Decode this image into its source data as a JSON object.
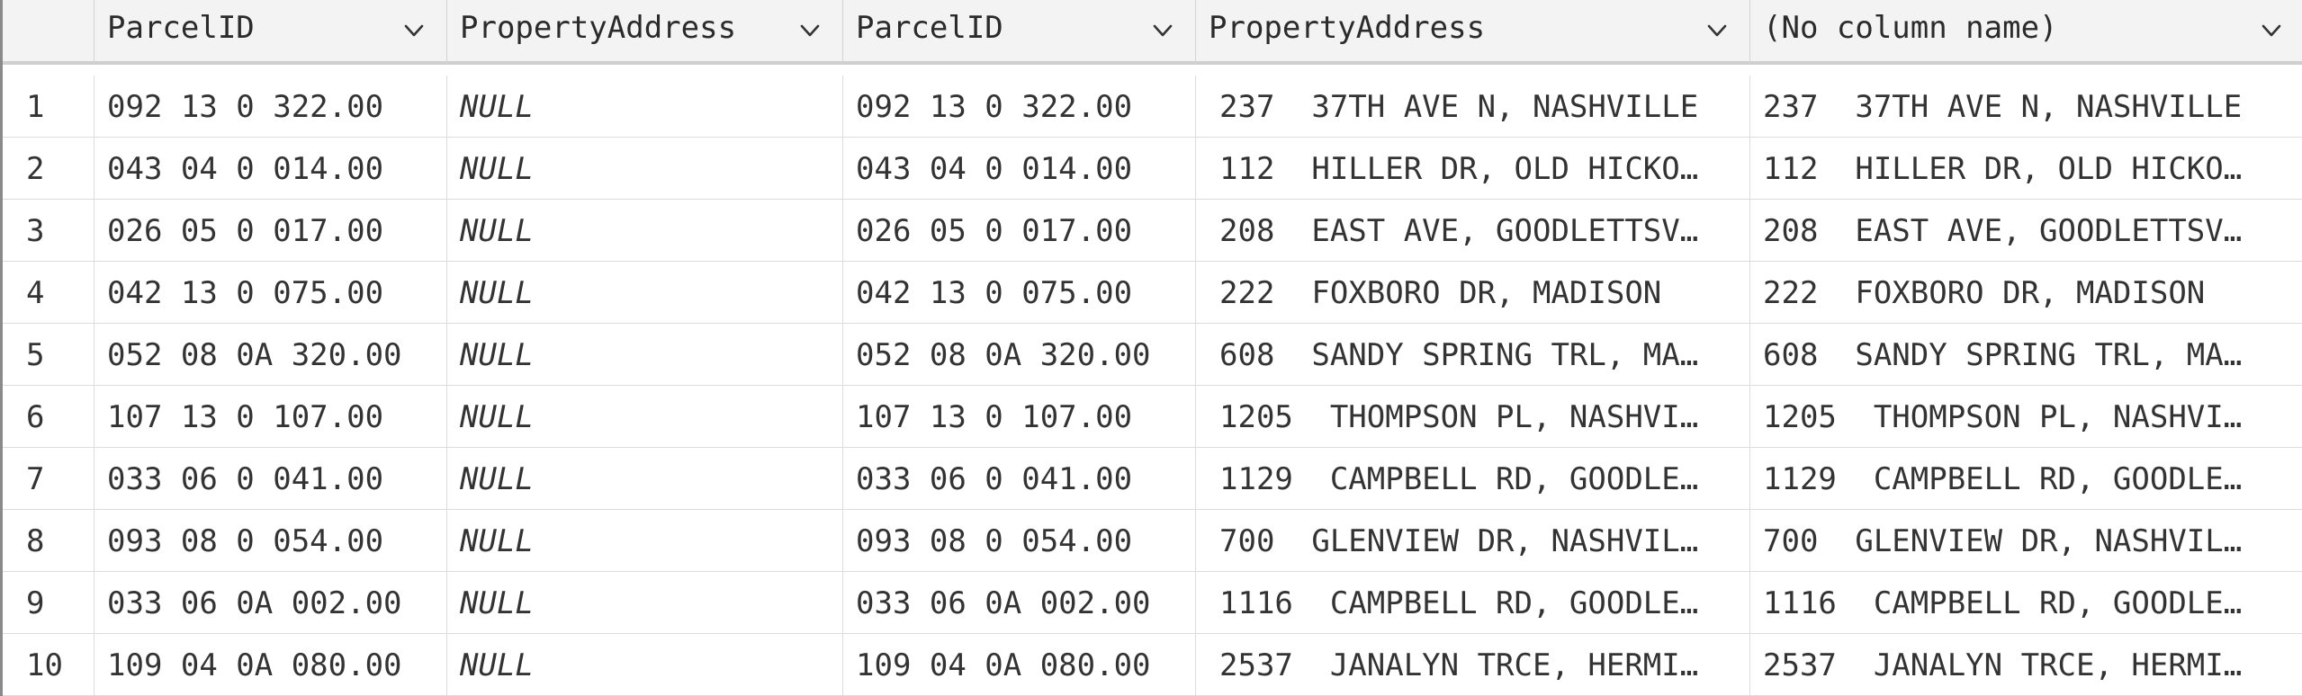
{
  "columns": [
    {
      "label": "",
      "sortable": false
    },
    {
      "label": "ParcelID",
      "sortable": true
    },
    {
      "label": "PropertyAddress",
      "sortable": true
    },
    {
      "label": "ParcelID",
      "sortable": true
    },
    {
      "label": "PropertyAddress",
      "sortable": true
    },
    {
      "label": "(No column name)",
      "sortable": true
    }
  ],
  "rows": [
    {
      "n": "1",
      "parcel_a": "092 13 0 322.00",
      "addr_a": "NULL",
      "parcel_b": "092 13 0 322.00",
      "addr_b": "237  37TH AVE N, NASHVILLE",
      "merged": "237  37TH AVE N, NASHVILLE"
    },
    {
      "n": "2",
      "parcel_a": "043 04 0 014.00",
      "addr_a": "NULL",
      "parcel_b": "043 04 0 014.00",
      "addr_b": "112  HILLER DR, OLD HICKO…",
      "merged": "112  HILLER DR, OLD HICKO…"
    },
    {
      "n": "3",
      "parcel_a": "026 05 0 017.00",
      "addr_a": "NULL",
      "parcel_b": "026 05 0 017.00",
      "addr_b": "208  EAST AVE, GOODLETTSV…",
      "merged": "208  EAST AVE, GOODLETTSV…"
    },
    {
      "n": "4",
      "parcel_a": "042 13 0 075.00",
      "addr_a": "NULL",
      "parcel_b": "042 13 0 075.00",
      "addr_b": "222  FOXBORO DR, MADISON",
      "merged": "222  FOXBORO DR, MADISON"
    },
    {
      "n": "5",
      "parcel_a": "052 08 0A 320.00",
      "addr_a": "NULL",
      "parcel_b": "052 08 0A 320.00",
      "addr_b": "608  SANDY SPRING TRL, MA…",
      "merged": "608  SANDY SPRING TRL, MA…"
    },
    {
      "n": "6",
      "parcel_a": "107 13 0 107.00",
      "addr_a": "NULL",
      "parcel_b": "107 13 0 107.00",
      "addr_b": "1205  THOMPSON PL, NASHVI…",
      "merged": "1205  THOMPSON PL, NASHVI…"
    },
    {
      "n": "7",
      "parcel_a": "033 06 0 041.00",
      "addr_a": "NULL",
      "parcel_b": "033 06 0 041.00",
      "addr_b": "1129  CAMPBELL RD, GOODLE…",
      "merged": "1129  CAMPBELL RD, GOODLE…"
    },
    {
      "n": "8",
      "parcel_a": "093 08 0 054.00",
      "addr_a": "NULL",
      "parcel_b": "093 08 0 054.00",
      "addr_b": "700  GLENVIEW DR, NASHVIL…",
      "merged": "700  GLENVIEW DR, NASHVIL…"
    },
    {
      "n": "9",
      "parcel_a": "033 06 0A 002.00",
      "addr_a": "NULL",
      "parcel_b": "033 06 0A 002.00",
      "addr_b": "1116  CAMPBELL RD, GOODLE…",
      "merged": "1116  CAMPBELL RD, GOODLE…"
    },
    {
      "n": "10",
      "parcel_a": "109 04 0A 080.00",
      "addr_a": "NULL",
      "parcel_b": "109 04 0A 080.00",
      "addr_b": "2537  JANALYN TRCE, HERMI…",
      "merged": "2537  JANALYN TRCE, HERMI…"
    }
  ],
  "icons": {
    "sort": "chevron-down-icon"
  },
  "colors": {
    "header_bg": "#f3f3f3",
    "border": "#dcdcdc",
    "text": "#333333"
  }
}
